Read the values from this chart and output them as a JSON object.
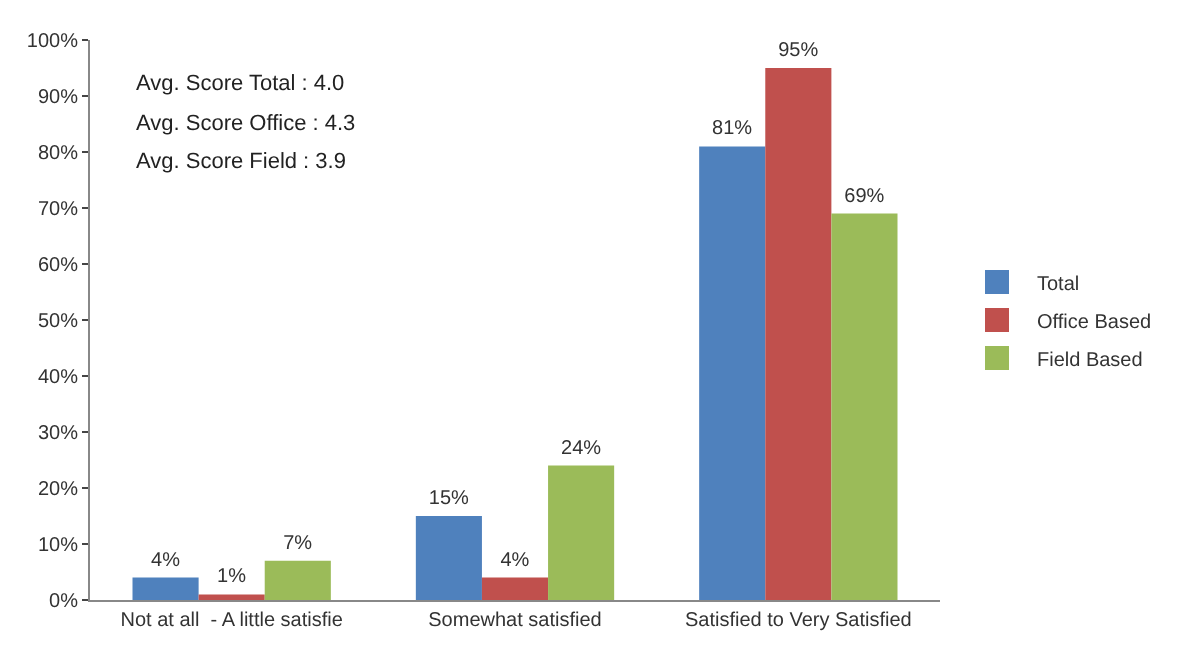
{
  "chart_data": {
    "type": "bar",
    "categories": [
      "Not at all  - A little satisfie",
      "Somewhat satisfied",
      "Satisfied to Very Satisfied"
    ],
    "series": [
      {
        "name": "Total",
        "color": "#4f81bd",
        "values": [
          4,
          15,
          81
        ]
      },
      {
        "name": "Office Based",
        "color": "#c0504d",
        "values": [
          1,
          4,
          95
        ]
      },
      {
        "name": "Field Based",
        "color": "#9bbb59",
        "values": [
          7,
          24,
          69
        ]
      }
    ],
    "value_labels": [
      [
        "4%",
        "15%",
        "81%"
      ],
      [
        "1%",
        "4%",
        "95%"
      ],
      [
        "7%",
        "24%",
        "69%"
      ]
    ],
    "ylim": [
      0,
      100
    ],
    "yticks": [
      {
        "value": 0,
        "label": "0%"
      },
      {
        "value": 10,
        "label": "10%"
      },
      {
        "value": 20,
        "label": "20%"
      },
      {
        "value": 30,
        "label": "30%"
      },
      {
        "value": 40,
        "label": "40%"
      },
      {
        "value": 50,
        "label": "50%"
      },
      {
        "value": 60,
        "label": "60%"
      },
      {
        "value": 70,
        "label": "70%"
      },
      {
        "value": 80,
        "label": "80%"
      },
      {
        "value": 90,
        "label": "90%"
      },
      {
        "value": 100,
        "label": "100%"
      }
    ],
    "annotations": [
      "Avg. Score Total : 4.0",
      "Avg. Score Office : 4.3",
      "Avg. Score Field : 3.9"
    ],
    "legend": "right",
    "grid": false
  }
}
